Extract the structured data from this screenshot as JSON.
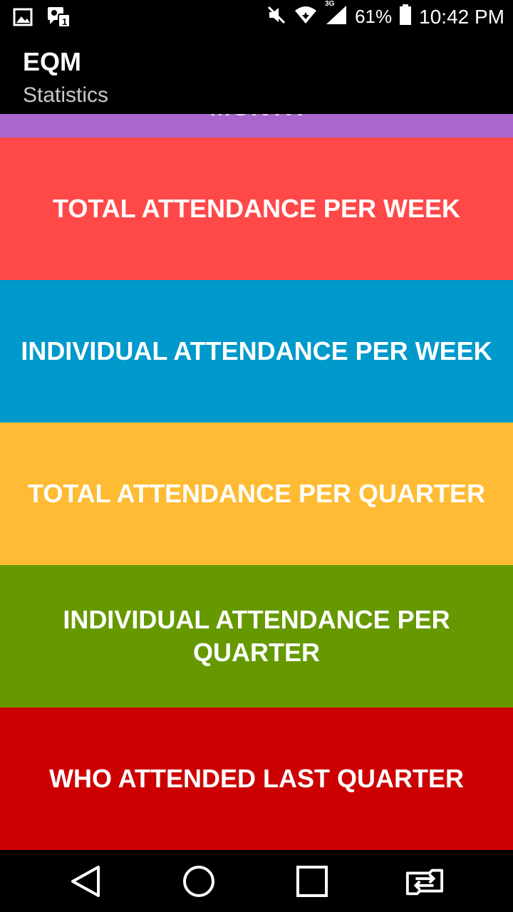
{
  "status_bar": {
    "battery_percent": "61%",
    "time": "10:42 PM",
    "network_type": "3G",
    "icons": [
      "gallery-icon",
      "eye-notification-icon",
      "mute-icon",
      "wifi-icon",
      "signal-icon",
      "battery-icon"
    ]
  },
  "app_bar": {
    "title": "EQM",
    "subtitle": "Statistics"
  },
  "list": {
    "partial_item": {
      "label": "MONTH",
      "color": "#A966CC"
    },
    "items": [
      {
        "label": "TOTAL ATTENDANCE PER WEEK",
        "color": "#FF4848"
      },
      {
        "label": "INDIVIDUAL ATTENDANCE PER WEEK",
        "color": "#0099CC"
      },
      {
        "label": "TOTAL ATTENDANCE PER QUARTER",
        "color": "#FFBB33"
      },
      {
        "label": "INDIVIDUAL ATTENDANCE PER QUARTER",
        "color": "#669900"
      },
      {
        "label": "WHO ATTENDED LAST QUARTER",
        "color": "#CC0000"
      }
    ]
  },
  "nav_bar": {
    "icons": [
      "back-icon",
      "home-icon",
      "recents-icon",
      "switch-app-icon"
    ]
  }
}
